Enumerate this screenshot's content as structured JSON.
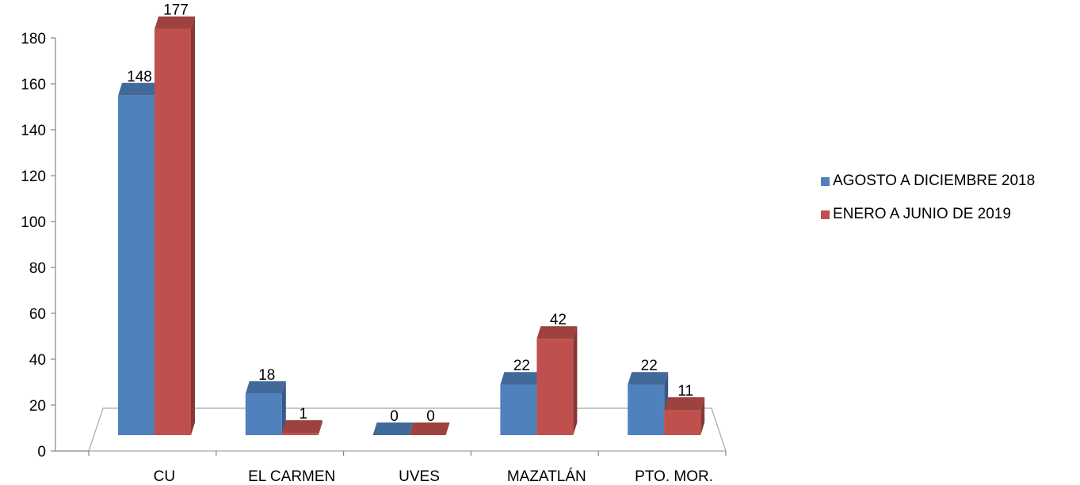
{
  "chart_data": {
    "type": "bar",
    "title": "",
    "xlabel": "",
    "ylabel": "",
    "categories": [
      "CU",
      "EL CARMEN",
      "UVES",
      "MAZATLÁN",
      "PTO. MOR."
    ],
    "series": [
      {
        "name": "AGOSTO A DICIEMBRE 2018",
        "values": [
          148,
          18,
          0,
          22,
          22
        ],
        "color": "#4F81BD"
      },
      {
        "name": "ENERO A JUNIO DE 2019",
        "values": [
          177,
          1,
          0,
          42,
          11
        ],
        "color": "#C0504D"
      }
    ],
    "ylim": [
      0,
      180
    ],
    "yticks": [
      0,
      20,
      40,
      60,
      80,
      100,
      120,
      140,
      160,
      180
    ],
    "data_labels": true,
    "grid": false,
    "legend": "right",
    "style": "3d-clustered-column"
  }
}
